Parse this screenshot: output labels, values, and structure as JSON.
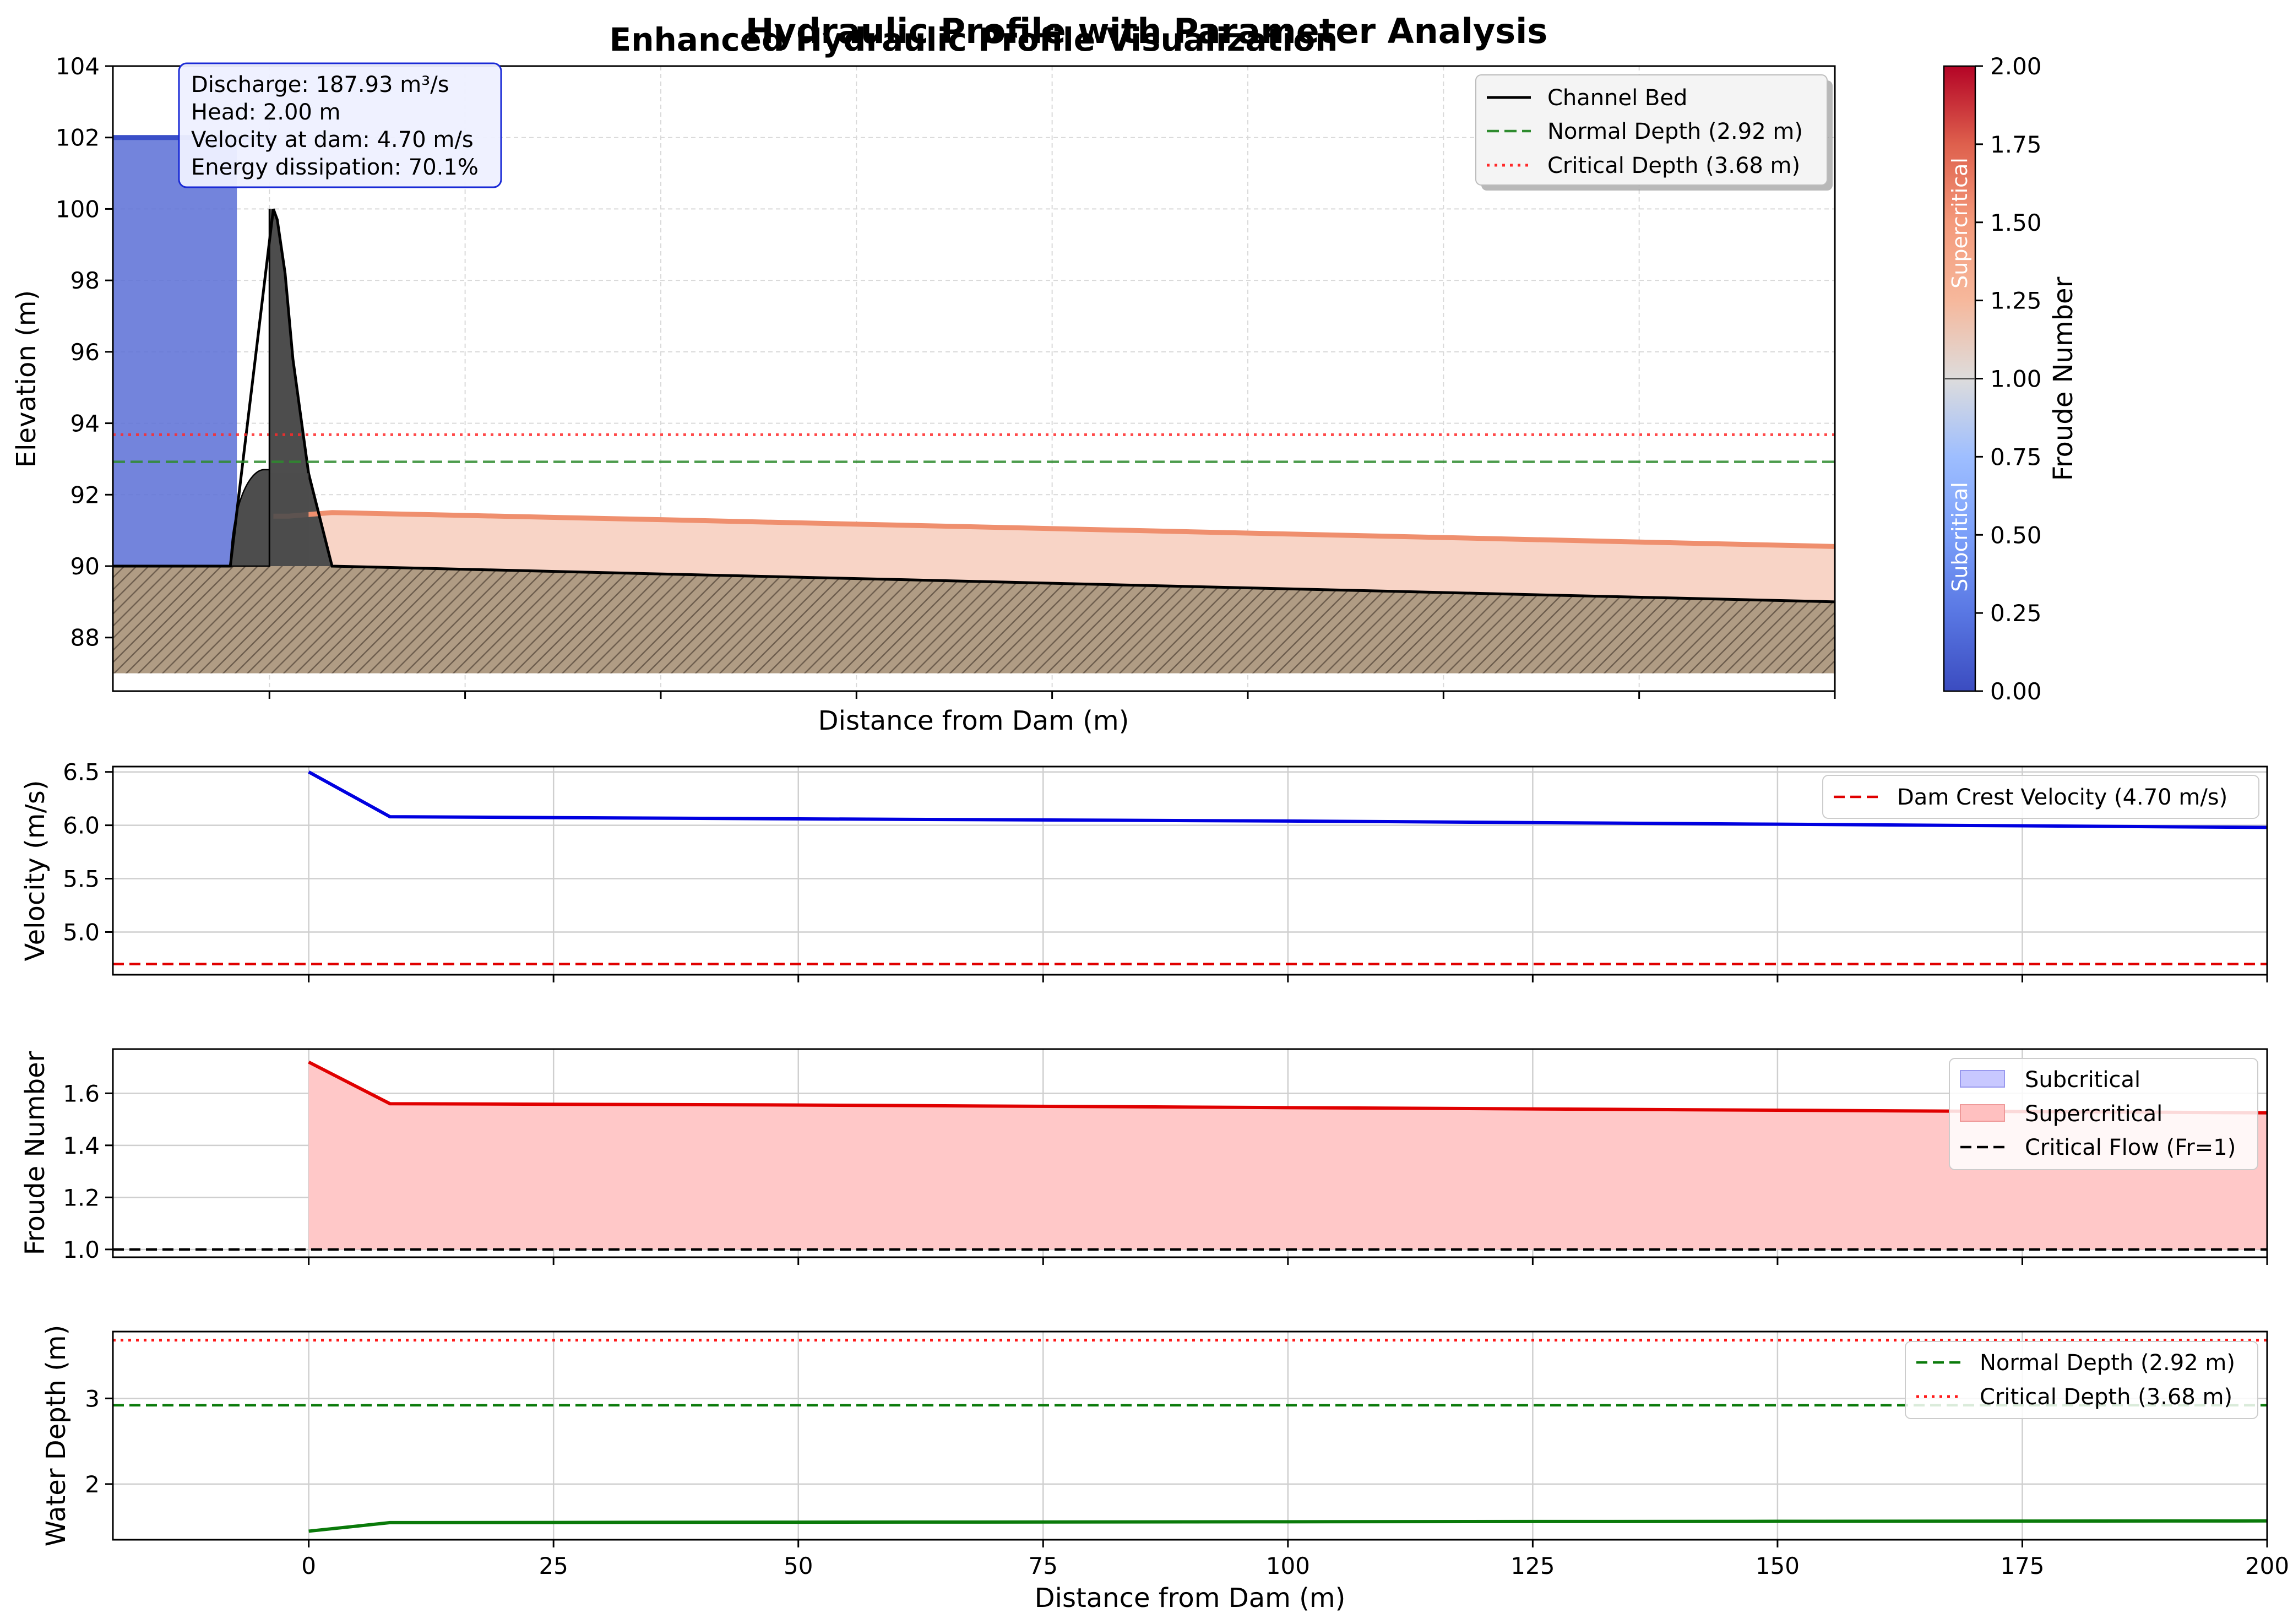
{
  "figure": {
    "suptitle": "Hydraulic Profile with Parameter Analysis",
    "colors": {
      "reservoir": "#5a6fd6",
      "dam": "#4d4d4d",
      "ground": "#b09c84",
      "water_downstream": "#f8d4c6",
      "surface_line": "#ef8f6e",
      "velocity": "#0000e0",
      "froude": "#e00000",
      "froude_fill": "#ffc8c8",
      "depth": "#0a7a0a"
    }
  },
  "info_box": {
    "lines": [
      "Discharge: 187.93 m³/s",
      "Head: 2.00 m",
      "Velocity at dam: 4.70 m/s",
      "Energy dissipation: 70.1%"
    ]
  },
  "colorbar": {
    "label": "Froude Number",
    "ticks": [
      "0.00",
      "0.25",
      "0.50",
      "0.75",
      "1.00",
      "1.25",
      "1.50",
      "1.75",
      "2.00"
    ],
    "range": [
      0,
      2
    ],
    "colormap": "coolwarm",
    "region_labels": [
      "Subcritical",
      "Supercritical"
    ]
  },
  "chart_data": [
    {
      "type": "area",
      "title": "Enhanced Hydraulic Profile Visualization",
      "xlabel": "Distance from Dam (m)",
      "ylabel": "Elevation (m)",
      "xlim": [
        -20,
        200
      ],
      "ylim": [
        86.5,
        104
      ],
      "y_ticks": [
        "88",
        "90",
        "92",
        "94",
        "96",
        "98",
        "100",
        "102",
        "104"
      ],
      "y_tick_values": [
        88,
        90,
        92,
        94,
        96,
        98,
        100,
        102,
        104
      ],
      "x_tick_values": [
        0,
        25,
        50,
        75,
        100,
        125,
        150,
        175,
        200
      ],
      "show_x_tick_labels": false,
      "grid": true,
      "legend_position": "top-right",
      "legend": [
        "Channel Bed",
        "Normal Depth (2.92 m)",
        "Critical Depth (3.68 m)"
      ],
      "reservoir": {
        "x": [
          -20,
          -5
        ],
        "water_level": 102,
        "bed": 90
      },
      "channel_bed": {
        "x": [
          -20,
          -5,
          0.5,
          1,
          2,
          3,
          5,
          8,
          200
        ],
        "y": [
          90,
          90,
          100,
          99.7,
          98.2,
          95.8,
          92.6,
          90,
          89
        ]
      },
      "water_surface": {
        "x": [
          0.5,
          2.5,
          8,
          50,
          100,
          150,
          200
        ],
        "y": [
          91.4,
          91.4,
          91.5,
          91.3,
          91.05,
          90.8,
          90.55
        ]
      },
      "normal_depth_level": 92.92,
      "critical_depth_level": 93.68,
      "ground_bottom": 87
    },
    {
      "type": "line",
      "title": "",
      "xlabel": "",
      "ylabel": "Velocity (m/s)",
      "xlim": [
        -20,
        200
      ],
      "ylim": [
        4.6,
        6.55
      ],
      "y_ticks": [
        "5.0",
        "5.5",
        "6.0",
        "6.5"
      ],
      "y_tick_values": [
        5.0,
        5.5,
        6.0,
        6.5
      ],
      "x_tick_values": [
        0,
        25,
        50,
        75,
        100,
        125,
        150,
        175,
        200
      ],
      "show_x_tick_labels": false,
      "grid": true,
      "legend_position": "top-right",
      "legend": [
        "Dam Crest Velocity (4.70 m/s)"
      ],
      "series": [
        {
          "x": [
            0,
            8.3,
            50,
            100,
            150,
            200
          ],
          "y": [
            6.5,
            6.08,
            6.06,
            6.04,
            6.01,
            5.98
          ]
        }
      ],
      "reference_line": 4.7
    },
    {
      "type": "area",
      "title": "",
      "xlabel": "",
      "ylabel": "Froude Number",
      "xlim": [
        -20,
        200
      ],
      "ylim": [
        0.97,
        1.77
      ],
      "y_ticks": [
        "1.0",
        "1.2",
        "1.4",
        "1.6"
      ],
      "y_tick_values": [
        1.0,
        1.2,
        1.4,
        1.6
      ],
      "x_tick_values": [
        0,
        25,
        50,
        75,
        100,
        125,
        150,
        175,
        200
      ],
      "show_x_tick_labels": false,
      "grid": true,
      "legend_position": "top-right",
      "legend": [
        "Subcritical",
        "Supercritical",
        "Critical Flow (Fr=1)"
      ],
      "series": [
        {
          "x": [
            0,
            8.3,
            50,
            100,
            150,
            200
          ],
          "y": [
            1.72,
            1.56,
            1.555,
            1.545,
            1.535,
            1.525
          ]
        }
      ],
      "reference_line": 1.0
    },
    {
      "type": "line",
      "title": "",
      "xlabel": "Distance from Dam (m)",
      "ylabel": "Water Depth (m)",
      "xlim": [
        -20,
        200
      ],
      "ylim": [
        1.35,
        3.78
      ],
      "y_ticks": [
        "2",
        "3"
      ],
      "y_tick_values": [
        2,
        3
      ],
      "x_ticks": [
        "0",
        "25",
        "50",
        "75",
        "100",
        "125",
        "150",
        "175",
        "200"
      ],
      "x_tick_values": [
        0,
        25,
        50,
        75,
        100,
        125,
        150,
        175,
        200
      ],
      "show_x_tick_labels": true,
      "grid": true,
      "legend_position": "top-right",
      "legend": [
        "Normal Depth (2.92 m)",
        "Critical Depth (3.68 m)"
      ],
      "series": [
        {
          "x": [
            0,
            8.3,
            50,
            100,
            150,
            200
          ],
          "y": [
            1.45,
            1.55,
            1.555,
            1.56,
            1.565,
            1.57
          ]
        }
      ],
      "normal_depth_level": 2.92,
      "critical_depth_level": 3.68
    }
  ]
}
